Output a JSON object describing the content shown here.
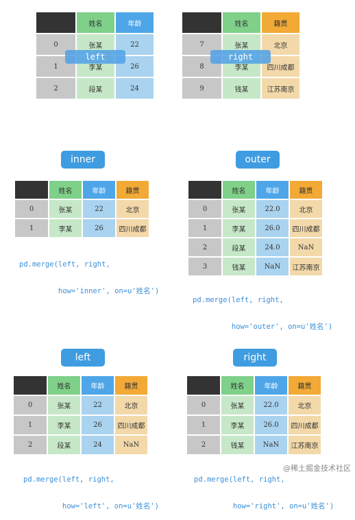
{
  "headers": {
    "name": "姓名",
    "age": "年龄",
    "place": "籍贯"
  },
  "left_table": {
    "tag": "left",
    "rows": [
      {
        "idx": "0",
        "name": "张某",
        "age": "22"
      },
      {
        "idx": "1",
        "name": "李某",
        "age": "26"
      },
      {
        "idx": "2",
        "name": "段某",
        "age": "24"
      }
    ]
  },
  "right_table": {
    "tag": "right",
    "rows": [
      {
        "idx": "7",
        "name": "张某",
        "place": "北京"
      },
      {
        "idx": "8",
        "name": "李某",
        "place": "四川成都"
      },
      {
        "idx": "9",
        "name": "钱某",
        "place": "江苏南京"
      }
    ]
  },
  "inner": {
    "title": "inner",
    "code_line1": "pd.merge(left, right,",
    "code_line2": "         how='inner', on=u'姓名')",
    "rows": [
      {
        "idx": "0",
        "name": "张某",
        "age": "22",
        "place": "北京"
      },
      {
        "idx": "1",
        "name": "李某",
        "age": "26",
        "place": "四川成都"
      }
    ]
  },
  "outer": {
    "title": "outer",
    "code_line1": "pd.merge(left, right,",
    "code_line2": "         how='outer', on=u'姓名')",
    "rows": [
      {
        "idx": "0",
        "name": "张某",
        "age": "22.0",
        "place": "北京"
      },
      {
        "idx": "1",
        "name": "李某",
        "age": "26.0",
        "place": "四川成都"
      },
      {
        "idx": "2",
        "name": "段某",
        "age": "24.0",
        "place": "NaN"
      },
      {
        "idx": "3",
        "name": "钱某",
        "age": "NaN",
        "place": "江苏南京"
      }
    ]
  },
  "left_join": {
    "title": "left",
    "code_line1": "pd.merge(left, right,",
    "code_line2": "         how='left', on=u'姓名')",
    "rows": [
      {
        "idx": "0",
        "name": "张某",
        "age": "22",
        "place": "北京"
      },
      {
        "idx": "1",
        "name": "李某",
        "age": "26",
        "place": "四川成都"
      },
      {
        "idx": "2",
        "name": "段某",
        "age": "24",
        "place": "NaN"
      }
    ]
  },
  "right_join": {
    "title": "right",
    "code_line1": "pd.merge(left, right,",
    "code_line2": "         how='right', on=u'姓名')",
    "rows": [
      {
        "idx": "0",
        "name": "张某",
        "age": "22.0",
        "place": "北京"
      },
      {
        "idx": "1",
        "name": "李某",
        "age": "26.0",
        "place": "四川成都"
      },
      {
        "idx": "2",
        "name": "钱某",
        "age": "NaN",
        "place": "江苏南京"
      }
    ]
  },
  "watermark": "@稀土掘金技术社区",
  "colors": {
    "name_header": "#7fd089",
    "age_header": "#4ea6e8",
    "place_header": "#f2a935",
    "badge": "#3f9ce0",
    "code": "#3a8fd8"
  }
}
